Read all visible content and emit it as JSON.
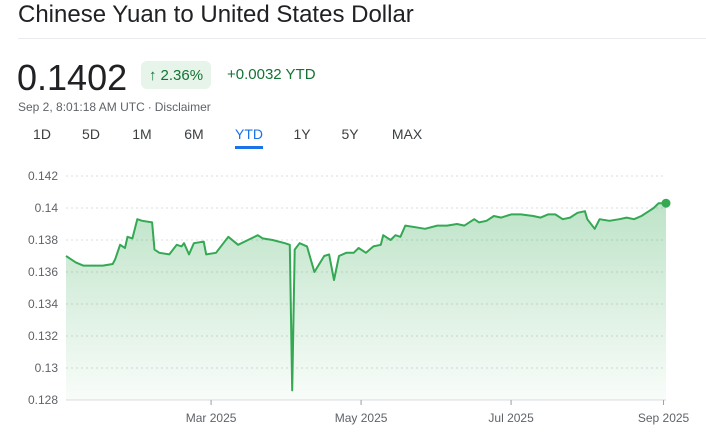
{
  "header": {
    "title": "Chinese Yuan to United States Dollar"
  },
  "quote": {
    "price": "0.1402",
    "change_pct": "2.36%",
    "change_abs": "+0.0032 YTD",
    "timestamp": "Sep 2, 8:01:18 AM UTC",
    "separator": "·",
    "disclaimer": "Disclaimer",
    "change_color": "#137333",
    "badge_bg": "#e6f4ea",
    "arrow_icon": "arrow-up-icon"
  },
  "range_tabs": [
    {
      "label": "1D"
    },
    {
      "label": "5D"
    },
    {
      "label": "1M"
    },
    {
      "label": "6M"
    },
    {
      "label": "YTD",
      "active": true
    },
    {
      "label": "1Y"
    },
    {
      "label": "5Y"
    },
    {
      "label": "MAX"
    }
  ],
  "accent_color": "#1a73e8",
  "chart_data": {
    "type": "area",
    "line_color": "#34a853",
    "grid": "horizontal dashed",
    "ylim": [
      0.128,
      0.142
    ],
    "yticks": [
      "0.142",
      "0.14",
      "0.138",
      "0.136",
      "0.134",
      "0.132",
      "0.13",
      "0.128"
    ],
    "yticks_values": [
      0.142,
      0.14,
      0.138,
      0.136,
      0.134,
      0.132,
      0.13,
      0.128
    ],
    "xticks": [
      "Mar 2025",
      "May 2025",
      "Jul 2025",
      "Sep 2025"
    ],
    "xticks_dates": [
      "2025-03-01",
      "2025-05-01",
      "2025-07-01",
      "2025-09-01"
    ],
    "xlim": [
      "2025-01-01",
      "2025-09-02"
    ],
    "points": [
      [
        "2025-01-01",
        0.137
      ],
      [
        "2025-01-03",
        0.1368
      ],
      [
        "2025-01-05",
        0.1366
      ],
      [
        "2025-01-08",
        0.1364
      ],
      [
        "2025-01-12",
        0.1364
      ],
      [
        "2025-01-16",
        0.1364
      ],
      [
        "2025-01-20",
        0.1365
      ],
      [
        "2025-01-21",
        0.1368
      ],
      [
        "2025-01-23",
        0.1377
      ],
      [
        "2025-01-25",
        0.1375
      ],
      [
        "2025-01-26",
        0.1382
      ],
      [
        "2025-01-28",
        0.1381
      ],
      [
        "2025-01-30",
        0.1393
      ],
      [
        "2025-02-01",
        0.1392
      ],
      [
        "2025-02-05",
        0.1391
      ],
      [
        "2025-02-06",
        0.1374
      ],
      [
        "2025-02-08",
        0.1372
      ],
      [
        "2025-02-12",
        0.1371
      ],
      [
        "2025-02-15",
        0.1377
      ],
      [
        "2025-02-17",
        0.1376
      ],
      [
        "2025-02-18",
        0.1378
      ],
      [
        "2025-02-20",
        0.1371
      ],
      [
        "2025-02-22",
        0.1378
      ],
      [
        "2025-02-26",
        0.1379
      ],
      [
        "2025-02-27",
        0.1371
      ],
      [
        "2025-03-03",
        0.1372
      ],
      [
        "2025-03-06",
        0.1378
      ],
      [
        "2025-03-08",
        0.1382
      ],
      [
        "2025-03-12",
        0.1377
      ],
      [
        "2025-03-16",
        0.138
      ],
      [
        "2025-03-20",
        0.1383
      ],
      [
        "2025-03-22",
        0.1381
      ],
      [
        "2025-03-26",
        0.138
      ],
      [
        "2025-03-31",
        0.1378
      ],
      [
        "2025-04-02",
        0.1377
      ],
      [
        "2025-04-03",
        0.1286
      ],
      [
        "2025-04-04",
        0.1374
      ],
      [
        "2025-04-06",
        0.1378
      ],
      [
        "2025-04-09",
        0.1376
      ],
      [
        "2025-04-12",
        0.136
      ],
      [
        "2025-04-16",
        0.137
      ],
      [
        "2025-04-18",
        0.1371
      ],
      [
        "2025-04-20",
        0.1355
      ],
      [
        "2025-04-22",
        0.137
      ],
      [
        "2025-04-25",
        0.1372
      ],
      [
        "2025-04-28",
        0.1372
      ],
      [
        "2025-04-30",
        0.1375
      ],
      [
        "2025-05-03",
        0.1372
      ],
      [
        "2025-05-06",
        0.1376
      ],
      [
        "2025-05-09",
        0.1377
      ],
      [
        "2025-05-10",
        0.1383
      ],
      [
        "2025-05-13",
        0.138
      ],
      [
        "2025-05-15",
        0.1383
      ],
      [
        "2025-05-17",
        0.1382
      ],
      [
        "2025-05-19",
        0.1389
      ],
      [
        "2025-05-23",
        0.1388
      ],
      [
        "2025-05-27",
        0.1387
      ],
      [
        "2025-06-01",
        0.1389
      ],
      [
        "2025-06-05",
        0.1389
      ],
      [
        "2025-06-09",
        0.139
      ],
      [
        "2025-06-12",
        0.1389
      ],
      [
        "2025-06-16",
        0.1393
      ],
      [
        "2025-06-18",
        0.1391
      ],
      [
        "2025-06-21",
        0.1392
      ],
      [
        "2025-06-24",
        0.1395
      ],
      [
        "2025-06-27",
        0.1394
      ],
      [
        "2025-07-01",
        0.1396
      ],
      [
        "2025-07-05",
        0.1396
      ],
      [
        "2025-07-10",
        0.1395
      ],
      [
        "2025-07-13",
        0.1394
      ],
      [
        "2025-07-16",
        0.1396
      ],
      [
        "2025-07-19",
        0.1396
      ],
      [
        "2025-07-22",
        0.1393
      ],
      [
        "2025-07-25",
        0.1394
      ],
      [
        "2025-07-28",
        0.1397
      ],
      [
        "2025-07-31",
        0.1398
      ],
      [
        "2025-08-01",
        0.1393
      ],
      [
        "2025-08-04",
        0.1387
      ],
      [
        "2025-08-06",
        0.1393
      ],
      [
        "2025-08-10",
        0.1392
      ],
      [
        "2025-08-14",
        0.1393
      ],
      [
        "2025-08-17",
        0.1394
      ],
      [
        "2025-08-20",
        0.1393
      ],
      [
        "2025-08-23",
        0.1395
      ],
      [
        "2025-08-26",
        0.1398
      ],
      [
        "2025-08-28",
        0.14
      ],
      [
        "2025-08-30",
        0.1403
      ],
      [
        "2025-09-02",
        0.1403
      ]
    ],
    "last_point_marker": true
  }
}
